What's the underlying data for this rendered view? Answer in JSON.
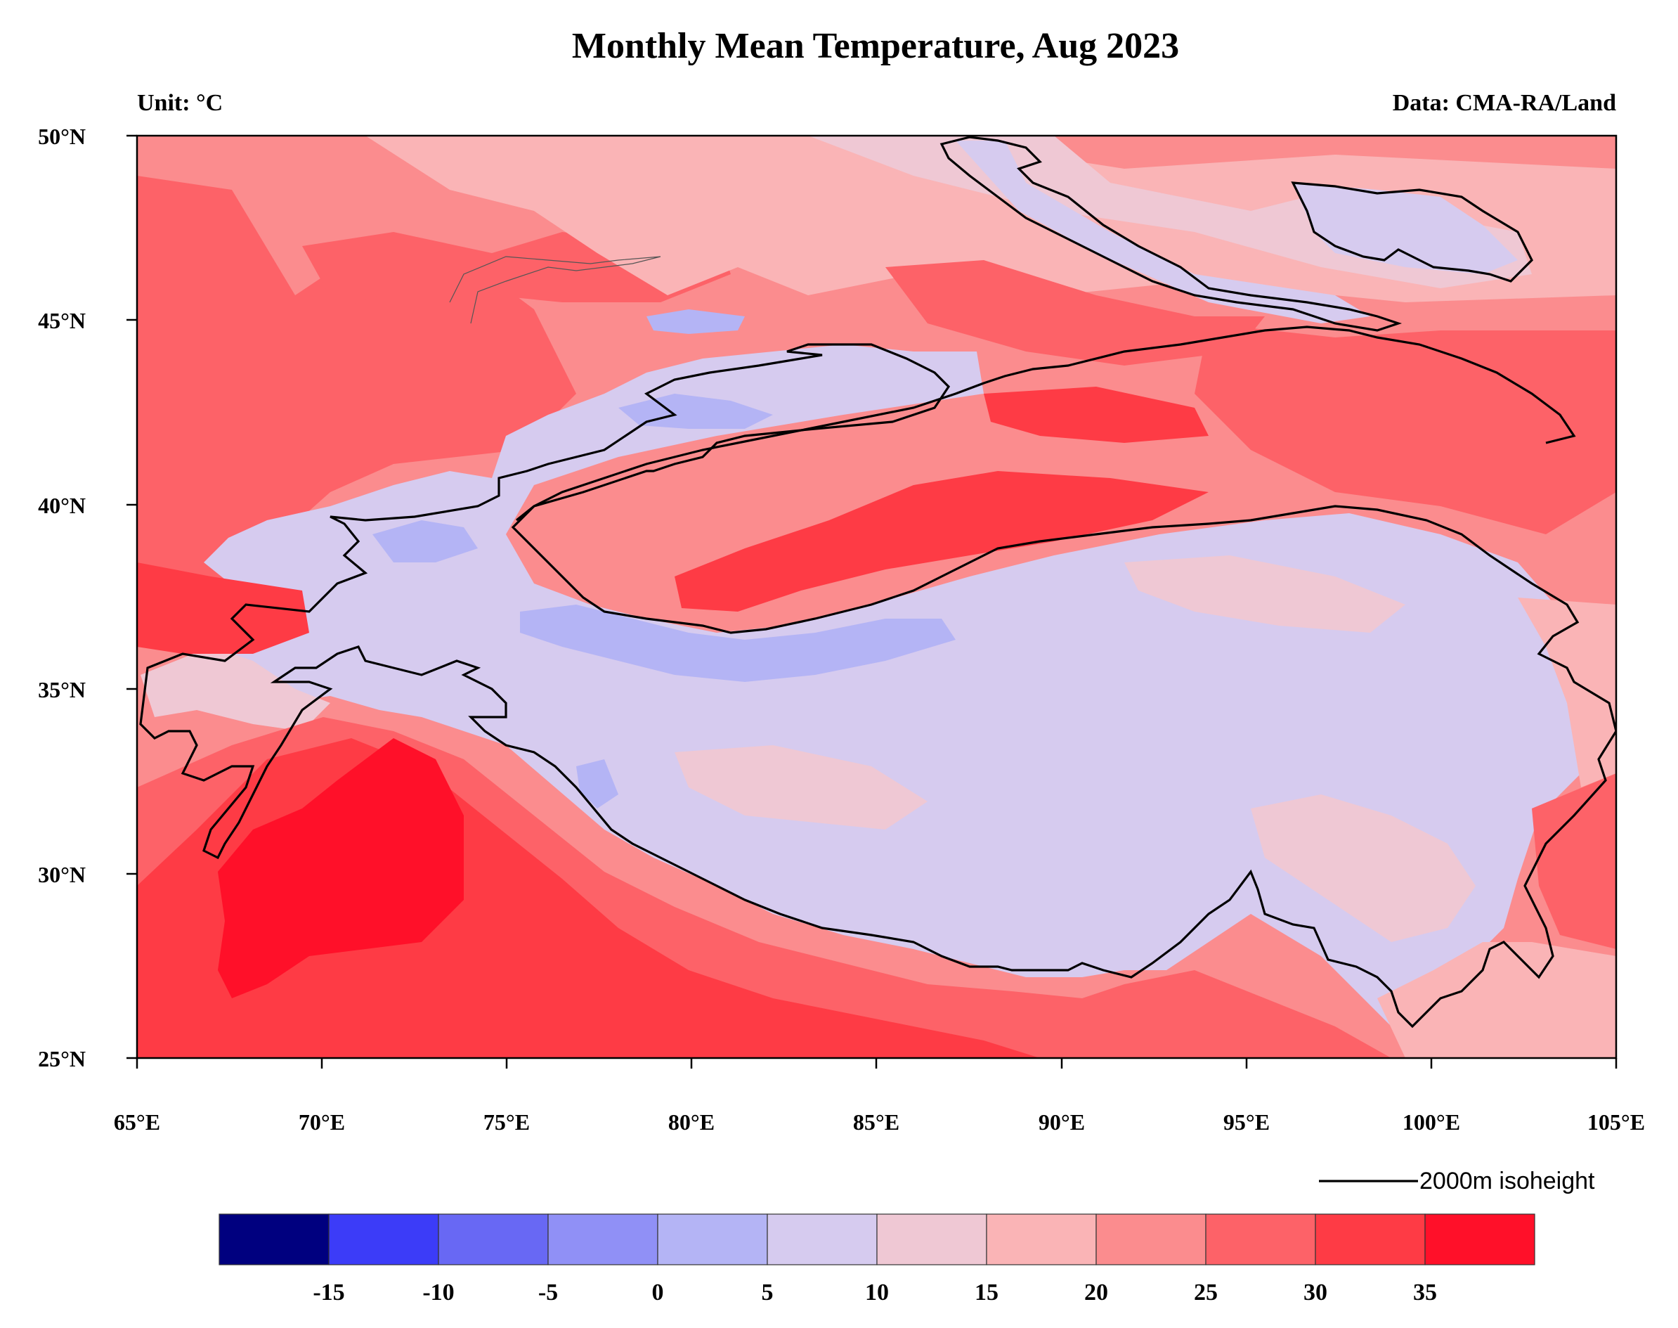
{
  "title": "Monthly Mean Temperature, Aug 2023",
  "unit_label": "Unit: °C",
  "source_label": "Data: CMA-RA/Land",
  "isoheight_label": "2000m isoheight",
  "map": {
    "lon_range": [
      65,
      105
    ],
    "lat_range": [
      25,
      50
    ],
    "lon_ticks": [
      "65°E",
      "70°E",
      "75°E",
      "80°E",
      "85°E",
      "90°E",
      "95°E",
      "100°E",
      "105°E"
    ],
    "lat_ticks": [
      "25°N",
      "30°N",
      "35°N",
      "40°N",
      "45°N",
      "50°N"
    ],
    "background_color": "#fb8c8e"
  },
  "colorbar": {
    "labels": [
      "-15",
      "-10",
      "-5",
      "0",
      "5",
      "10",
      "15",
      "20",
      "25",
      "30",
      "35"
    ],
    "colors": [
      "#00007f",
      "#3c3cf8",
      "#6868f4",
      "#9090f6",
      "#b4b4f5",
      "#d6cbef",
      "#efc8d4",
      "#fab4b6",
      "#fb8c8e",
      "#fd6268",
      "#fe3b45",
      "#ff1029"
    ]
  },
  "regions": [
    {
      "name": "tibetan-plateau",
      "color": "#d6cbef"
    },
    {
      "name": "tarim-basin",
      "color": "#fe3b45"
    },
    {
      "name": "indus-plain",
      "color": "#ff1029"
    },
    {
      "name": "north-region",
      "color": "#fab4b6"
    },
    {
      "name": "west-region",
      "color": "#fd6268"
    },
    {
      "name": "east-region",
      "color": "#fd6268"
    },
    {
      "name": "south-region",
      "color": "#fd6268"
    },
    {
      "name": "cold-spot",
      "color": "#b4b4f5"
    }
  ]
}
